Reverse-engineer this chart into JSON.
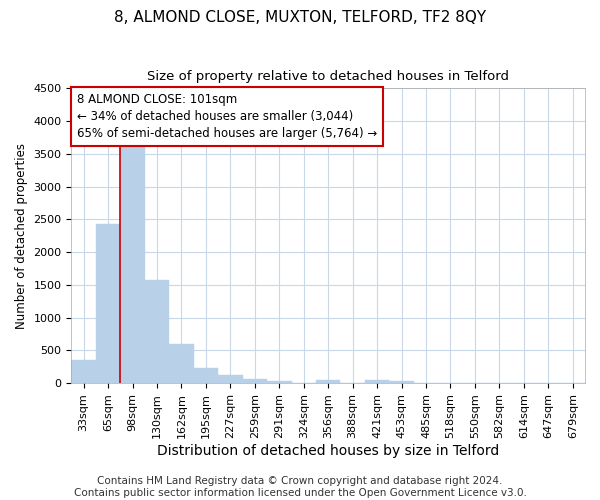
{
  "title": "8, ALMOND CLOSE, MUXTON, TELFORD, TF2 8QY",
  "subtitle": "Size of property relative to detached houses in Telford",
  "xlabel": "Distribution of detached houses by size in Telford",
  "ylabel": "Number of detached properties",
  "categories": [
    "33sqm",
    "65sqm",
    "98sqm",
    "130sqm",
    "162sqm",
    "195sqm",
    "227sqm",
    "259sqm",
    "291sqm",
    "324sqm",
    "356sqm",
    "388sqm",
    "421sqm",
    "453sqm",
    "485sqm",
    "518sqm",
    "550sqm",
    "582sqm",
    "614sqm",
    "647sqm",
    "679sqm"
  ],
  "values": [
    350,
    2430,
    3600,
    1580,
    600,
    230,
    130,
    70,
    30,
    0,
    50,
    0,
    50,
    30,
    0,
    0,
    0,
    0,
    0,
    0,
    0
  ],
  "bar_color": "#b8d0e8",
  "bar_edge_color": "#b8d0e8",
  "vline_x_index": 2,
  "vline_color": "#cc0000",
  "annotation_text": "8 ALMOND CLOSE: 101sqm\n← 34% of detached houses are smaller (3,044)\n65% of semi-detached houses are larger (5,764) →",
  "annotation_box_facecolor": "white",
  "annotation_box_edgecolor": "#cc0000",
  "ylim": [
    0,
    4500
  ],
  "yticks": [
    0,
    500,
    1000,
    1500,
    2000,
    2500,
    3000,
    3500,
    4000,
    4500
  ],
  "fig_bg_color": "#ffffff",
  "plot_bg_color": "#ffffff",
  "grid_color": "#c8d8e8",
  "footer": "Contains HM Land Registry data © Crown copyright and database right 2024.\nContains public sector information licensed under the Open Government Licence v3.0.",
  "title_fontsize": 11,
  "subtitle_fontsize": 9.5,
  "xlabel_fontsize": 10,
  "ylabel_fontsize": 8.5,
  "tick_fontsize": 8,
  "annotation_fontsize": 8.5,
  "footer_fontsize": 7.5
}
